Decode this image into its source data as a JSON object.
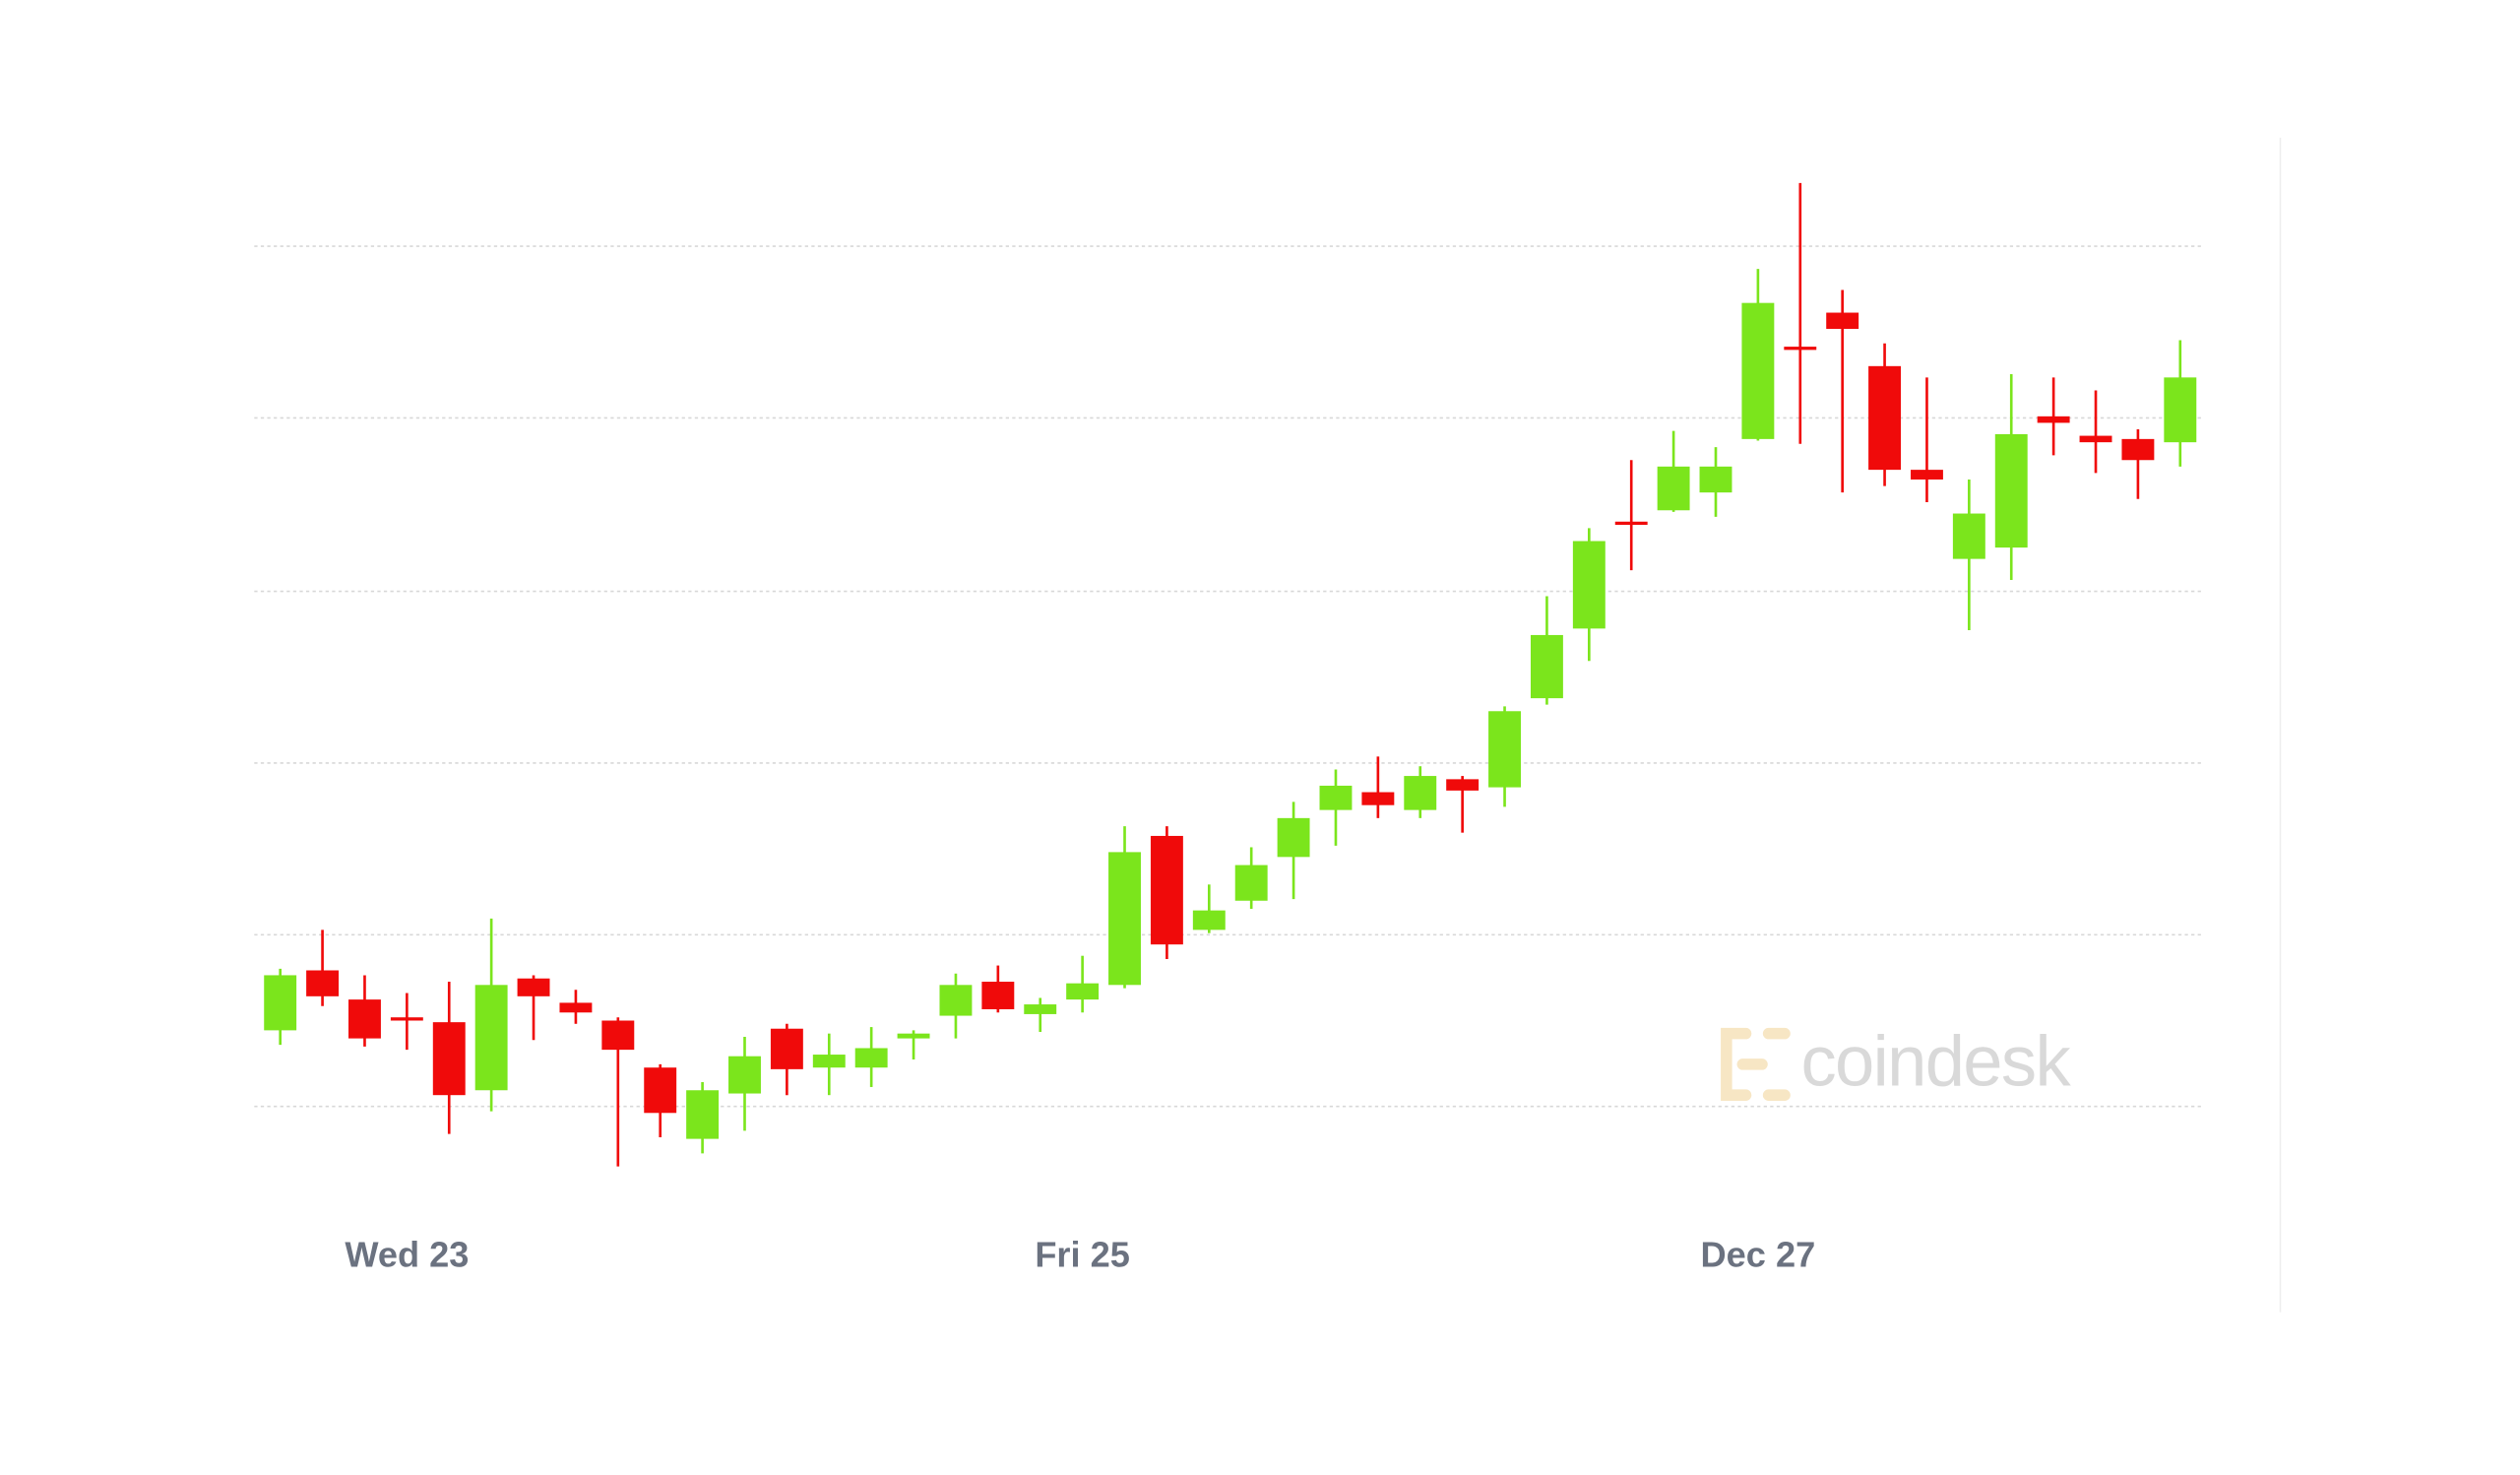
{
  "chart_data": {
    "type": "candlestick",
    "categories": [
      null,
      null,
      null,
      "Wed 23",
      null,
      null,
      null,
      null,
      null,
      null,
      null,
      null,
      null,
      null,
      null,
      null,
      null,
      null,
      null,
      "Fri 25",
      null,
      null,
      null,
      null,
      null,
      null,
      null,
      null,
      null,
      null,
      null,
      null,
      null,
      null,
      null,
      "Dec 27",
      null,
      null,
      null,
      null,
      null,
      null,
      null,
      null,
      null,
      null
    ],
    "open": [
      47,
      84,
      66,
      55,
      52,
      10,
      79,
      64,
      53,
      24,
      -20,
      8,
      48,
      24,
      24,
      42,
      56,
      77,
      57,
      66,
      75,
      167,
      109,
      127,
      154,
      183,
      194,
      183,
      202,
      197,
      252,
      295,
      361,
      368,
      379,
      412,
      469,
      490,
      457,
      393,
      338,
      345,
      426,
      414,
      412,
      410
    ],
    "high": [
      85,
      109,
      81,
      70,
      77,
      116,
      81,
      72,
      55,
      26,
      15,
      43,
      51,
      45,
      49,
      47,
      82,
      87,
      67,
      93,
      173,
      173,
      137,
      160,
      188,
      208,
      216,
      210,
      204,
      247,
      315,
      357,
      399,
      417,
      407,
      517,
      570,
      504,
      471,
      450,
      387,
      452,
      450,
      442,
      418,
      473
    ],
    "low": [
      38,
      62,
      37,
      35,
      -17,
      -3,
      41,
      51,
      -37,
      -19,
      -29,
      -15,
      7,
      7,
      12,
      29,
      42,
      58,
      46,
      58,
      73,
      91,
      107,
      122,
      128,
      161,
      178,
      178,
      169,
      185,
      248,
      275,
      331,
      367,
      364,
      411,
      409,
      379,
      383,
      373,
      294,
      325,
      402,
      391,
      375,
      395
    ],
    "close": [
      81,
      68,
      42,
      53,
      7,
      75,
      68,
      58,
      35,
      -4,
      10,
      31,
      23,
      32,
      36,
      45,
      75,
      60,
      63,
      76,
      157,
      100,
      121,
      149,
      178,
      198,
      186,
      204,
      195,
      244,
      291,
      349,
      359,
      395,
      395,
      496,
      467,
      480,
      393,
      387,
      366,
      415,
      422,
      410,
      399,
      450
    ],
    "up_color": "#7be51c",
    "down_color": "#f00a0a",
    "ylim": [
      -57,
      598
    ],
    "yticks": [
      0,
      106,
      212,
      318,
      425,
      531
    ],
    "grid": true,
    "watermark": "coindesk"
  }
}
